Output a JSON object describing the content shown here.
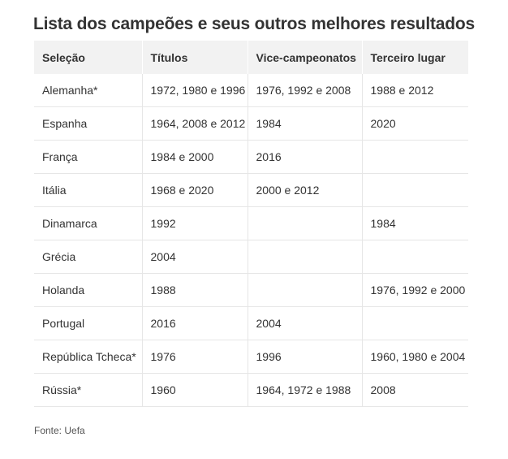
{
  "title": "Lista dos campeões e seus outros melhores resultados",
  "table": {
    "headers": [
      "Seleção",
      "Títulos",
      "Vice-campeonatos",
      "Terceiro lugar"
    ],
    "rows": [
      [
        "Alemanha*",
        "1972, 1980 e 1996",
        "1976, 1992 e 2008",
        "1988 e 2012"
      ],
      [
        "Espanha",
        "1964, 2008 e 2012",
        "1984",
        "2020"
      ],
      [
        "França",
        "1984 e 2000",
        "2016",
        ""
      ],
      [
        "Itália",
        "1968 e 2020",
        "2000 e 2012",
        ""
      ],
      [
        "Dinamarca",
        "1992",
        "",
        "1984"
      ],
      [
        "Grécia",
        "2004",
        "",
        ""
      ],
      [
        "Holanda",
        "1988",
        "",
        "1976, 1992 e 2000"
      ],
      [
        "Portugal",
        "2016",
        "2004",
        ""
      ],
      [
        "República Tcheca*",
        "1976",
        "1996",
        "1960, 1980 e 2004"
      ],
      [
        "Rússia*",
        "1960",
        "1964, 1972 e 1988",
        "2008"
      ]
    ]
  },
  "source": "Fonte: Uefa"
}
